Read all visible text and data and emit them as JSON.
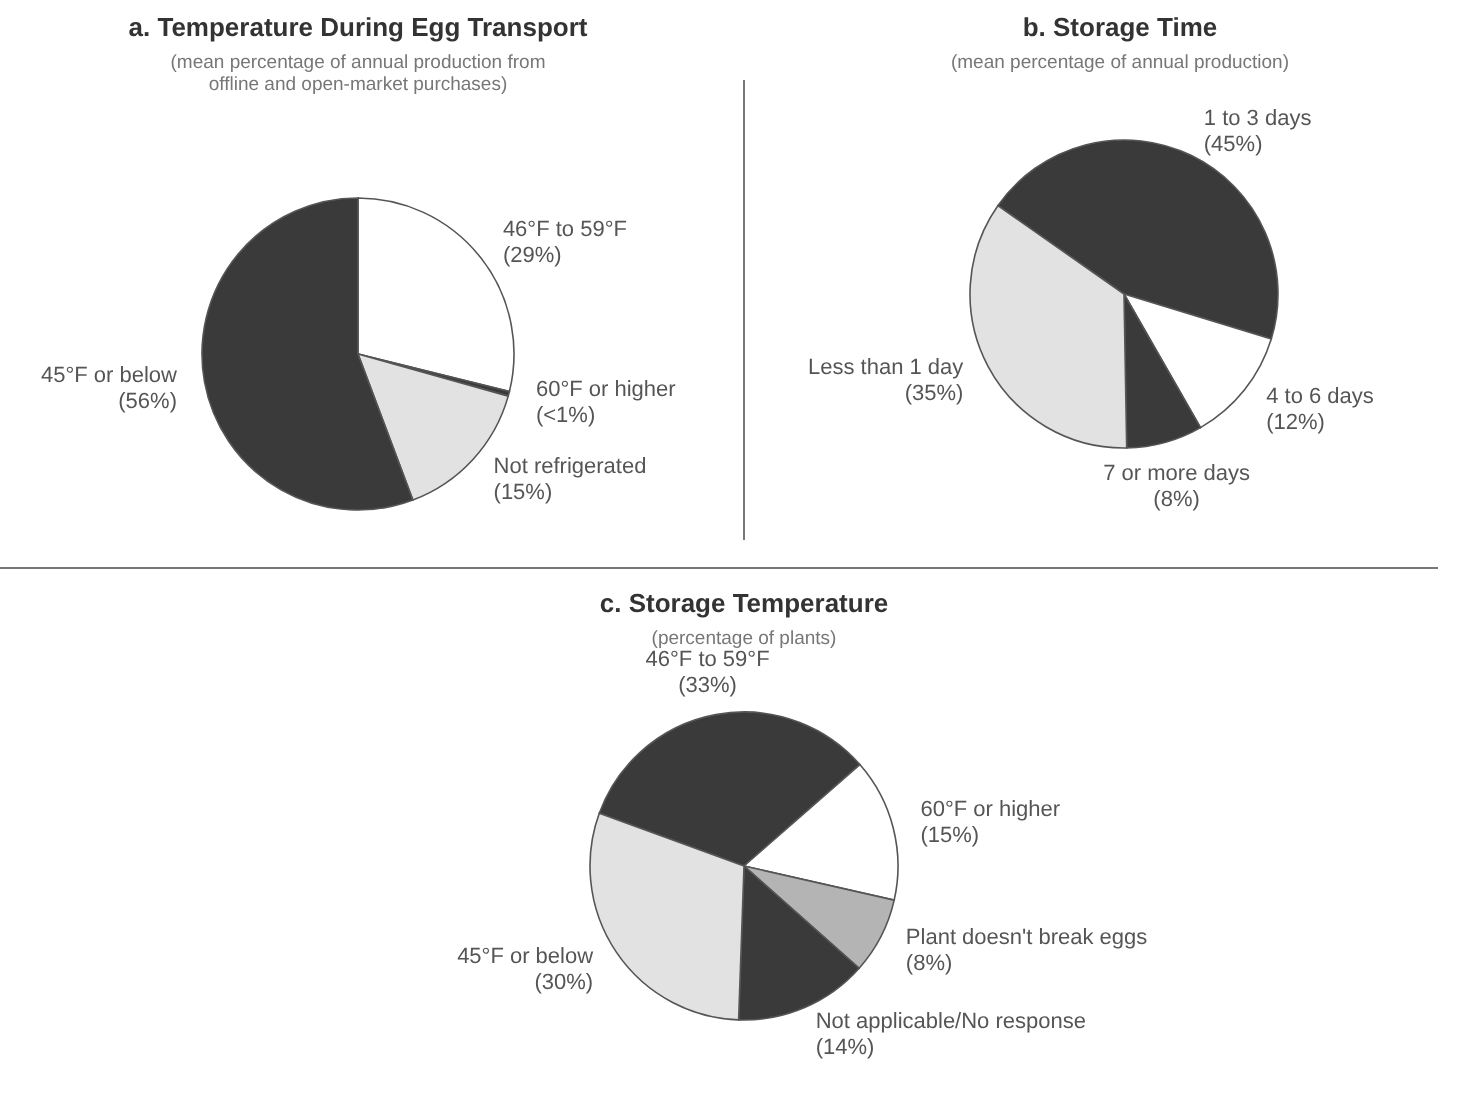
{
  "chart_data": [
    {
      "type": "pie",
      "title": "a. Temperature During Egg Transport",
      "subtitle": "(mean percentage of annual production from offline and open-market purchases)",
      "categories": [
        "46°F to 59°F",
        "60°F or higher",
        "Not refrigerated",
        "45°F or below"
      ],
      "values": [
        29,
        0.5,
        15,
        56
      ],
      "value_labels": [
        "(29%)",
        "(<1%)",
        "(15%)",
        "(56%)"
      ],
      "colors": [
        "#ffffff",
        "#3a3a3a",
        "#e2e2e2",
        "#3a3a3a"
      ]
    },
    {
      "type": "pie",
      "title": "b. Storage Time",
      "subtitle": "(mean percentage of annual production)",
      "categories": [
        "1 to 3 days",
        "4 to 6 days",
        "7 or more days",
        "Less than 1 day"
      ],
      "values": [
        45,
        12,
        8,
        35
      ],
      "value_labels": [
        "(45%)",
        "(12%)",
        "(8%)",
        "(35%)"
      ],
      "colors": [
        "#3a3a3a",
        "#ffffff",
        "#3a3a3a",
        "#e2e2e2"
      ]
    },
    {
      "type": "pie",
      "title": "c. Storage Temperature",
      "subtitle": "(percentage of plants)",
      "categories": [
        "46°F to 59°F",
        "60°F or higher",
        "Plant doesn't break eggs",
        "Not applicable/No response",
        "45°F or below"
      ],
      "values": [
        33,
        15,
        8,
        14,
        30
      ],
      "value_labels": [
        "(33%)",
        "(15%)",
        "(8%)",
        "(14%)",
        "(30%)"
      ],
      "colors": [
        "#3a3a3a",
        "#ffffff",
        "#b4b4b4",
        "#3a3a3a",
        "#e2e2e2"
      ]
    }
  ]
}
